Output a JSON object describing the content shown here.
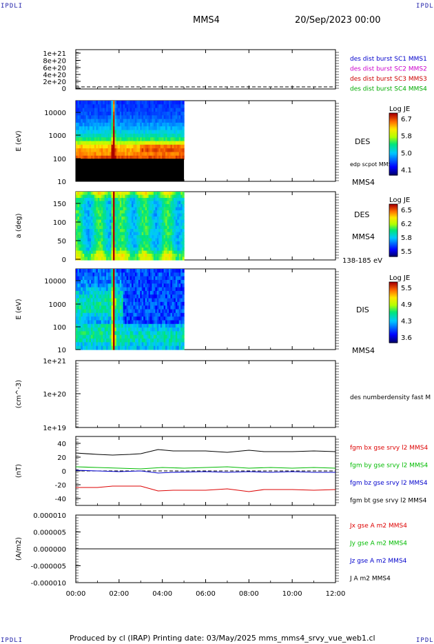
{
  "header": {
    "corner_left": "IPDLI",
    "corner_right": "IPDLI",
    "corner_bottom_left": "IPDLI",
    "corner_bottom_right": "IPDLI",
    "spacecraft": "MMS4",
    "datetime": "20/Sep/2023 00:00"
  },
  "footer": {
    "text": "Produced by cl (IRAP)   Printing date: 03/May/2025   mms_mms4_srvy_vue_web1.cl"
  },
  "x_axis": {
    "ticks": [
      "00:00",
      "02:00",
      "04:00",
      "06:00",
      "08:00",
      "10:00",
      "12:00"
    ],
    "range_hours": [
      0,
      12
    ],
    "data_end_hours": 5.0
  },
  "colors": {
    "mms1": "#0000cc",
    "mms2": "#cc00cc",
    "mms3": "#cc0000",
    "mms4": "#00aa00",
    "bx": "#dd0000",
    "by": "#00bb00",
    "bz": "#0000cc",
    "bt": "#000000"
  },
  "chart_data": [
    {
      "type": "line",
      "panel": "dist-burst",
      "ylabel": "",
      "yticks": [
        "1e+21",
        "8e+20",
        "6e+20",
        "4e+20",
        "2e+20",
        "0"
      ],
      "ylim": [
        0,
        1.2e+21
      ],
      "series": [
        {
          "name": "des dist burst SC1 MMS1",
          "color": "#0000cc"
        },
        {
          "name": "des dist burst SC2 MMS2",
          "color": "#cc00cc"
        },
        {
          "name": "des dist burst SC3 MMS3",
          "color": "#cc0000"
        },
        {
          "name": "des dist burst SC4 MMS4",
          "color": "#00aa00"
        }
      ]
    },
    {
      "type": "heatmap",
      "panel": "des-energy",
      "ylabel": "E (eV)",
      "yscale": "log",
      "yticks": [
        "10000",
        "1000",
        "100",
        "10"
      ],
      "ylim": [
        10,
        25000
      ],
      "right_label": "DES",
      "right_small": "edp scpot MMS4",
      "bottom_right": "MMS4",
      "colorbar": {
        "title": "Log JE",
        "ticks": [
          "6.7",
          "5.8",
          "5.0",
          "4.1"
        ],
        "range": [
          4.1,
          6.7
        ]
      }
    },
    {
      "type": "heatmap",
      "panel": "des-pitch",
      "ylabel": "a (deg)",
      "yticks": [
        "150",
        "100",
        "50",
        "0"
      ],
      "ylim": [
        0,
        180
      ],
      "right_label": "DES",
      "right_label2": "MMS4",
      "bottom_right": "138-185 eV",
      "colorbar": {
        "title": "Log JE",
        "ticks": [
          "6.5",
          "6.2",
          "5.8",
          "5.5"
        ],
        "range": [
          5.5,
          6.6
        ]
      }
    },
    {
      "type": "heatmap",
      "panel": "dis-energy",
      "ylabel": "E (eV)",
      "yscale": "log",
      "yticks": [
        "10000",
        "1000",
        "100",
        "10"
      ],
      "ylim": [
        10,
        25000
      ],
      "right_label": "DIS",
      "bottom_right": "MMS4",
      "colorbar": {
        "title": "Log JE",
        "ticks": [
          "5.5",
          "4.9",
          "4.3",
          "3.6"
        ],
        "range": [
          3.6,
          5.6
        ]
      }
    },
    {
      "type": "line",
      "panel": "density",
      "ylabel": "(cm^-3)",
      "yscale": "log",
      "yticks": [
        "1e+21",
        "1e+20",
        "1e+19"
      ],
      "ylim": [
        1e+19,
        1e+21
      ],
      "series": [
        {
          "name": "des numberdensity fast M",
          "color": "#000000"
        }
      ]
    },
    {
      "type": "line",
      "panel": "magnetic-field",
      "ylabel": "(nT)",
      "yticks": [
        "40",
        "20",
        "0",
        "-20",
        "-40"
      ],
      "ylim": [
        -50,
        50
      ],
      "series": [
        {
          "name": "fgm bx gse srvy l2 MMS4",
          "color": "#dd0000",
          "x": [
            0,
            1.0,
            1.7,
            3.0,
            3.8,
            4.5,
            6.0,
            7.0,
            8.0,
            8.7,
            10.0,
            11.0,
            12.0
          ],
          "values": [
            -24,
            -24,
            -22,
            -22,
            -29,
            -28,
            -28,
            -26,
            -30,
            -27,
            -27,
            -28,
            -27
          ]
        },
        {
          "name": "fgm by gse srvy l2 MMS4",
          "color": "#00bb00",
          "x": [
            0,
            1.0,
            2.0,
            3.0,
            4.0,
            5.0,
            6.0,
            7.0,
            8.0,
            9.0,
            10.0,
            11.0,
            12.0
          ],
          "values": [
            6,
            5,
            4,
            3,
            5,
            4,
            5,
            6,
            4,
            5,
            4,
            5,
            4
          ]
        },
        {
          "name": "fgm bz gse srvy l2 MMS4",
          "color": "#0000cc",
          "x": [
            0,
            1.0,
            2.0,
            3.0,
            3.8,
            4.5,
            6.0,
            7.0,
            8.0,
            9.0,
            10.0,
            11.0,
            12.0
          ],
          "values": [
            1,
            0,
            -1,
            0,
            -3,
            -2,
            -1,
            -2,
            -1,
            -2,
            -1,
            -2,
            -2
          ]
        },
        {
          "name": "fgm bt gse srvy l2 MMS4",
          "color": "#000000",
          "x": [
            0,
            1.0,
            1.7,
            2.5,
            3.0,
            3.8,
            4.5,
            6.0,
            7.0,
            8.0,
            8.7,
            10.0,
            11.0,
            12.0
          ],
          "values": [
            26,
            24,
            23,
            24,
            25,
            31,
            29,
            29,
            27,
            30,
            28,
            28,
            29,
            28
          ]
        }
      ]
    },
    {
      "type": "line",
      "panel": "current-density",
      "ylabel": "(A/m2)",
      "yticks": [
        "0.000010",
        "0.000005",
        "0.000000",
        "-0.000005",
        "-0.000010"
      ],
      "ylim": [
        -1e-05,
        1e-05
      ],
      "series": [
        {
          "name": "Jx gse A m2 MMS4",
          "color": "#dd0000"
        },
        {
          "name": "Jy gse A m2 MMS4",
          "color": "#00bb00"
        },
        {
          "name": "Jz gse A m2 MMS4",
          "color": "#0000cc"
        },
        {
          "name": "J A m2 MMS4",
          "color": "#000000",
          "x": [
            0,
            12
          ],
          "values": [
            0,
            0
          ]
        }
      ]
    }
  ]
}
